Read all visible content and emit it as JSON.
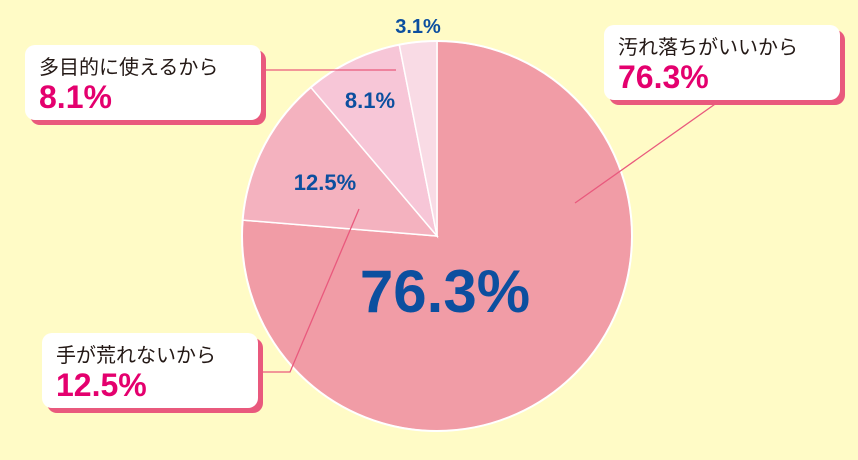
{
  "chart_data": {
    "type": "pie",
    "title": "",
    "start": "top",
    "direction": "clockwise",
    "slices": [
      {
        "label": "汚れ落ちがいいから",
        "value": 76.3,
        "text": "76.3%",
        "color": "#f19ca6"
      },
      {
        "label": "手が荒れないから",
        "value": 12.5,
        "text": "12.5%",
        "color": "#f4b2bf"
      },
      {
        "label": "多目的に使えるから",
        "value": 8.1,
        "text": "8.1%",
        "color": "#f7c6d7"
      },
      {
        "label": "",
        "value": 3.1,
        "text": "3.1%",
        "color": "#f9dbe5"
      }
    ]
  },
  "callouts": {
    "a": {
      "name": "汚れ落ちがいいから",
      "value": "76.3%"
    },
    "b": {
      "name": "多目的に使えるから",
      "value": "8.1%"
    },
    "c": {
      "name": "手が荒れないから",
      "value": "12.5%"
    }
  }
}
